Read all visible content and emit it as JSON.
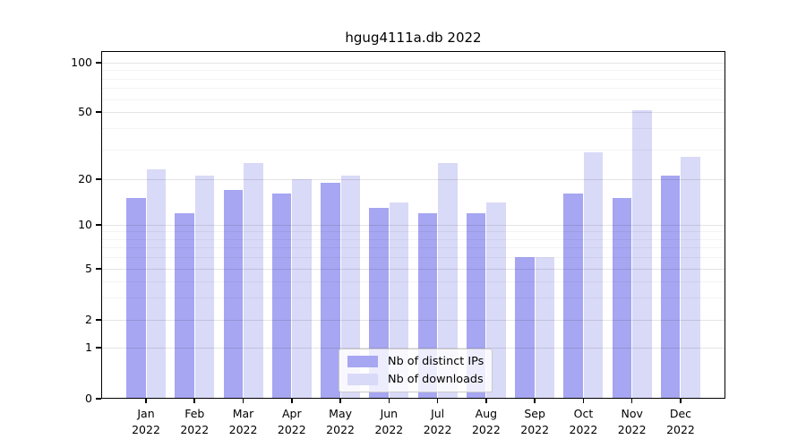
{
  "chart_data": {
    "type": "bar",
    "title": "hgug4111a.db 2022",
    "categories": [
      "Jan",
      "Feb",
      "Mar",
      "Apr",
      "May",
      "Jun",
      "Jul",
      "Aug",
      "Sep",
      "Oct",
      "Nov",
      "Dec"
    ],
    "x_year_label": "2022",
    "series": [
      {
        "name": "Nb of distinct IPs",
        "color": "#a6a6f2",
        "values": [
          15,
          12,
          17,
          16,
          19,
          13,
          12,
          12,
          6,
          16,
          15,
          21
        ]
      },
      {
        "name": "Nb of downloads",
        "color": "#d9d9f8",
        "values": [
          23,
          21,
          25,
          20,
          21,
          14,
          25,
          14,
          6,
          29,
          51,
          27
        ]
      }
    ],
    "xlabel": "",
    "ylabel": "",
    "yticks": [
      0,
      1,
      2,
      5,
      10,
      20,
      50,
      100
    ],
    "ylim": [
      0,
      100
    ],
    "yscale": "log-like",
    "grid": true,
    "legend_position": "bottom-center"
  }
}
